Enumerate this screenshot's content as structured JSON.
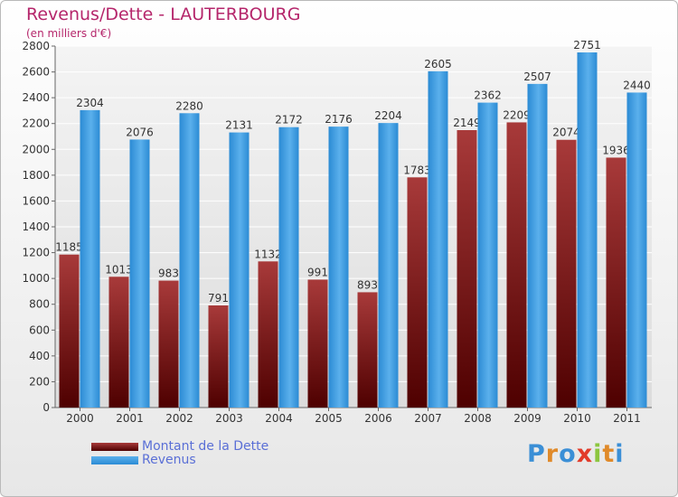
{
  "header": {
    "title": "Revenus/Dette - LAUTERBOURG",
    "subtitle": "(en milliers d'€)"
  },
  "colors": {
    "title": "#b5266b",
    "dette_dark": "#4e0000",
    "dette_light": "#a83a3a",
    "revenus_dark": "#2b8bd4",
    "revenus_light": "#5bb0ec",
    "grid": "#ffffff",
    "legend_text": "#5a6fd6"
  },
  "chart_data": {
    "type": "bar",
    "categories": [
      "2000",
      "2001",
      "2002",
      "2003",
      "2004",
      "2005",
      "2006",
      "2007",
      "2008",
      "2009",
      "2010",
      "2011"
    ],
    "series": [
      {
        "name": "Montant de la Dette",
        "values": [
          1185,
          1013,
          983,
          791,
          1132,
          991,
          893,
          1783,
          2149,
          2209,
          2074,
          1936
        ]
      },
      {
        "name": "Revenus",
        "values": [
          2304,
          2076,
          2280,
          2131,
          2172,
          2176,
          2204,
          2605,
          2362,
          2507,
          2751,
          2440
        ]
      }
    ],
    "ylim": [
      0,
      2800
    ],
    "ytick_step": 200,
    "grid": true,
    "legend": "bottom-left"
  },
  "logo": {
    "letters": [
      {
        "ch": "P",
        "color": "#3b8fd6"
      },
      {
        "ch": "r",
        "color": "#e08a2a"
      },
      {
        "ch": "o",
        "color": "#3b8fd6"
      },
      {
        "ch": "x",
        "color": "#e23b2a"
      },
      {
        "ch": "i",
        "color": "#8cc63f"
      },
      {
        "ch": "t",
        "color": "#e08a2a"
      },
      {
        "ch": "i",
        "color": "#3b8fd6"
      }
    ]
  }
}
